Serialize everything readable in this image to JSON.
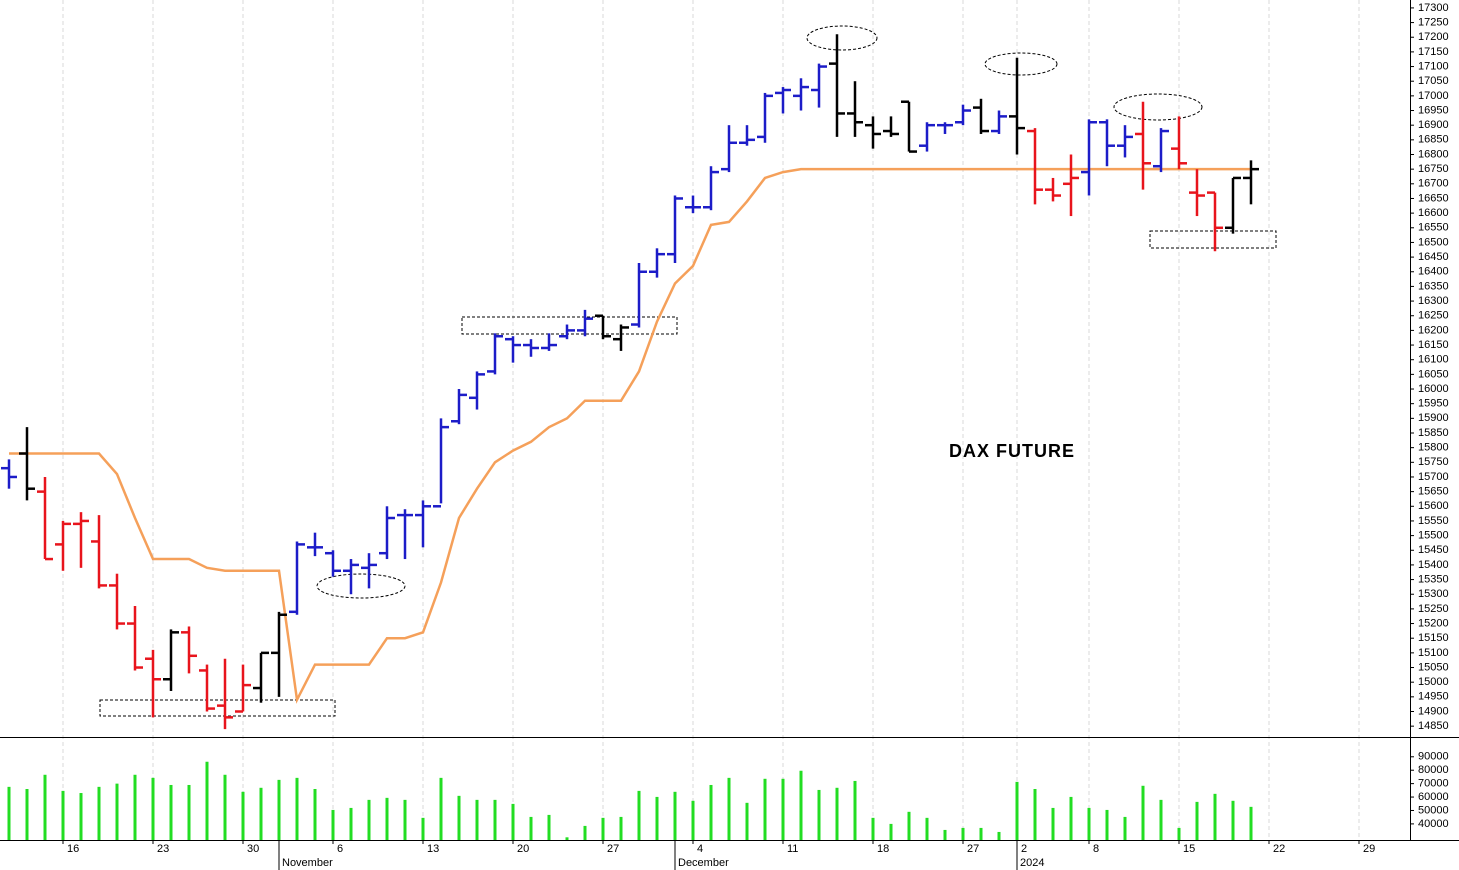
{
  "chart_data": [
    {
      "type": "ohlc",
      "title": "DAX FUTURE",
      "categories": [
        null,
        null,
        null,
        "16",
        null,
        null,
        null,
        null,
        "23",
        null,
        null,
        null,
        null,
        "30",
        null,
        null,
        null,
        null,
        "6",
        null,
        null,
        null,
        null,
        "13",
        null,
        null,
        null,
        null,
        "20",
        null,
        null,
        null,
        null,
        "27",
        null,
        null,
        null,
        null,
        "4",
        null,
        null,
        null,
        null,
        "11",
        null,
        null,
        null,
        null,
        "18",
        null,
        null,
        null,
        null,
        "27",
        null,
        null,
        "2",
        null,
        null,
        null,
        "8",
        null,
        null,
        null,
        null,
        "15",
        null,
        null,
        null,
        null,
        "22",
        null,
        null,
        null,
        null,
        "29",
        null,
        null
      ],
      "months": [
        {
          "category": 15,
          "label": "November"
        },
        {
          "category": 37,
          "label": "December"
        },
        {
          "category": 56,
          "label": "2024"
        }
      ],
      "open": [
        15730,
        15780,
        15650,
        15470,
        15540,
        15480,
        15330,
        15200,
        15080,
        15010,
        15170,
        15040,
        14920,
        14900,
        14980,
        15100,
        15240,
        15460,
        15440,
        15380,
        15390,
        15440,
        15570,
        15570,
        15600,
        15890,
        15970,
        16060,
        16170,
        16150,
        16140,
        16180,
        16200,
        16250,
        16170,
        16220,
        16400,
        16460,
        16620,
        16620,
        16750,
        16840,
        16860,
        17010,
        17000,
        17020,
        17110,
        16940,
        16900,
        16880,
        16980,
        16830,
        16900,
        16910,
        16960,
        16880,
        16930,
        16880,
        16680,
        16700,
        16740,
        16910,
        16830,
        16870,
        16760,
        16820,
        16670,
        16670,
        16550,
        16720,
        null,
        null,
        null,
        null,
        null,
        null,
        null,
        null
      ],
      "high": [
        15760,
        15870,
        15700,
        15550,
        15580,
        15570,
        15370,
        15260,
        15110,
        15180,
        15190,
        15060,
        15080,
        15060,
        15100,
        15240,
        15480,
        15510,
        15450,
        15420,
        15440,
        15600,
        15590,
        15620,
        15900,
        16000,
        16060,
        16190,
        16180,
        16170,
        16190,
        16220,
        16270,
        16250,
        16220,
        16430,
        16480,
        16660,
        16660,
        16760,
        16900,
        16900,
        17010,
        17030,
        17060,
        17110,
        17210,
        17050,
        16930,
        16930,
        16980,
        16910,
        16910,
        16970,
        16990,
        16950,
        17130,
        16890,
        16720,
        16800,
        16920,
        16920,
        16900,
        16980,
        16890,
        16930,
        16750,
        16670,
        16720,
        16780,
        null,
        null,
        null,
        null,
        null,
        null,
        null,
        null
      ],
      "low": [
        15660,
        15620,
        15420,
        15380,
        15390,
        15320,
        15180,
        15040,
        14880,
        14970,
        15030,
        14900,
        14840,
        14900,
        14930,
        14950,
        15230,
        15430,
        15360,
        15300,
        15320,
        15420,
        15420,
        15460,
        15610,
        15880,
        15930,
        16050,
        16090,
        16110,
        16130,
        16170,
        16180,
        16170,
        16130,
        16210,
        16380,
        16430,
        16600,
        16610,
        16740,
        16830,
        16840,
        16940,
        16950,
        16960,
        16860,
        16860,
        16820,
        16860,
        16810,
        16810,
        16870,
        16900,
        16870,
        16870,
        16800,
        16630,
        16640,
        16590,
        16660,
        16760,
        16790,
        16680,
        16740,
        16750,
        16590,
        16470,
        16530,
        16630,
        null,
        null,
        null,
        null,
        null,
        null,
        null,
        null
      ],
      "close": [
        15700,
        15660,
        15420,
        15540,
        15550,
        15330,
        15200,
        15050,
        15010,
        15170,
        15090,
        14910,
        14880,
        14990,
        15100,
        15230,
        15470,
        15460,
        15380,
        15400,
        15400,
        15560,
        15570,
        15600,
        15870,
        15980,
        16050,
        16180,
        16150,
        16140,
        16150,
        16200,
        16240,
        16180,
        16210,
        16400,
        16460,
        16650,
        16620,
        16740,
        16840,
        16850,
        17000,
        17020,
        17030,
        17100,
        16940,
        16910,
        16870,
        16870,
        16810,
        16900,
        16900,
        16950,
        16880,
        16930,
        16890,
        16680,
        16660,
        16720,
        16910,
        16830,
        16860,
        16770,
        16880,
        16770,
        16660,
        16550,
        16720,
        16750,
        null,
        null,
        null,
        null,
        null,
        null,
        null,
        null
      ],
      "bar_colors": [
        "#1c1cc8",
        "#000000",
        "#e8141c",
        "#e8141c",
        "#e8141c",
        "#e8141c",
        "#e8141c",
        "#e8141c",
        "#e8141c",
        "#000000",
        "#e8141c",
        "#e8141c",
        "#e8141c",
        "#e8141c",
        "#000000",
        "#000000",
        "#1c1cc8",
        "#1c1cc8",
        "#1c1cc8",
        "#1c1cc8",
        "#1c1cc8",
        "#1c1cc8",
        "#1c1cc8",
        "#1c1cc8",
        "#1c1cc8",
        "#1c1cc8",
        "#1c1cc8",
        "#1c1cc8",
        "#1c1cc8",
        "#1c1cc8",
        "#1c1cc8",
        "#1c1cc8",
        "#1c1cc8",
        "#000000",
        "#000000",
        "#1c1cc8",
        "#1c1cc8",
        "#1c1cc8",
        "#1c1cc8",
        "#1c1cc8",
        "#1c1cc8",
        "#1c1cc8",
        "#1c1cc8",
        "#1c1cc8",
        "#1c1cc8",
        "#1c1cc8",
        "#000000",
        "#000000",
        "#000000",
        "#000000",
        "#000000",
        "#1c1cc8",
        "#1c1cc8",
        "#1c1cc8",
        "#000000",
        "#1c1cc8",
        "#000000",
        "#e8141c",
        "#e8141c",
        "#e8141c",
        "#1c1cc8",
        "#1c1cc8",
        "#1c1cc8",
        "#e8141c",
        "#1c1cc8",
        "#e8141c",
        "#e8141c",
        "#e8141c",
        "#000000",
        "#000000",
        null,
        null,
        null,
        null,
        null,
        null,
        null,
        null
      ],
      "line": {
        "color": "#f5a05a",
        "values": [
          15780,
          15780,
          15780,
          15780,
          15780,
          15780,
          15710,
          15560,
          15420,
          15420,
          15420,
          15390,
          15380,
          15380,
          15380,
          15380,
          14940,
          15060,
          15060,
          15060,
          15060,
          15150,
          15150,
          15170,
          15340,
          15560,
          15660,
          15750,
          15790,
          15820,
          15870,
          15900,
          15960,
          15960,
          15960,
          16060,
          16230,
          16360,
          16420,
          16560,
          16570,
          16640,
          16720,
          16740,
          16750,
          16750,
          16750,
          16750,
          16750,
          16750,
          16750,
          16750,
          16750,
          16750,
          16750,
          16750,
          16750,
          16750,
          16750,
          16750,
          16750,
          16750,
          16750,
          16750,
          16750,
          16750,
          16750,
          16750,
          16750,
          16750,
          null,
          null,
          null,
          null,
          null,
          null,
          null,
          null
        ]
      },
      "ylim": [
        14813,
        17327
      ],
      "yticks": [
        14850,
        14900,
        14950,
        15000,
        15050,
        15100,
        15150,
        15200,
        15250,
        15300,
        15350,
        15400,
        15450,
        15500,
        15550,
        15600,
        15650,
        15700,
        15750,
        15800,
        15850,
        15900,
        15950,
        16000,
        16050,
        16100,
        16150,
        16200,
        16250,
        16300,
        16350,
        16400,
        16450,
        16500,
        16550,
        16600,
        16650,
        16700,
        16750,
        16800,
        16850,
        16900,
        16950,
        17000,
        17050,
        17100,
        17150,
        17200,
        17250,
        17300
      ],
      "grid": true
    },
    {
      "type": "bar",
      "color": "#22dd22",
      "values": [
        67600,
        66000,
        76600,
        64600,
        63000,
        67600,
        70000,
        76600,
        74300,
        69000,
        69000,
        86300,
        76600,
        63900,
        66900,
        72800,
        74300,
        66000,
        50400,
        51900,
        57900,
        59400,
        57900,
        44500,
        74300,
        60900,
        57900,
        57900,
        54900,
        45200,
        46700,
        30000,
        38500,
        44500,
        45200,
        64600,
        60100,
        63900,
        57200,
        69000,
        74300,
        55700,
        73600,
        73600,
        79600,
        65300,
        66900,
        72000,
        44500,
        40000,
        49000,
        44500,
        35500,
        37000,
        37000,
        34000,
        71300,
        66000,
        51900,
        60100,
        51900,
        50400,
        45200,
        68400,
        57900,
        37000,
        56400,
        62400,
        57200,
        52700
      ],
      "ylim": [
        28000,
        104000
      ],
      "yticks": [
        40000,
        50000,
        60000,
        70000,
        80000,
        90000
      ]
    }
  ]
}
